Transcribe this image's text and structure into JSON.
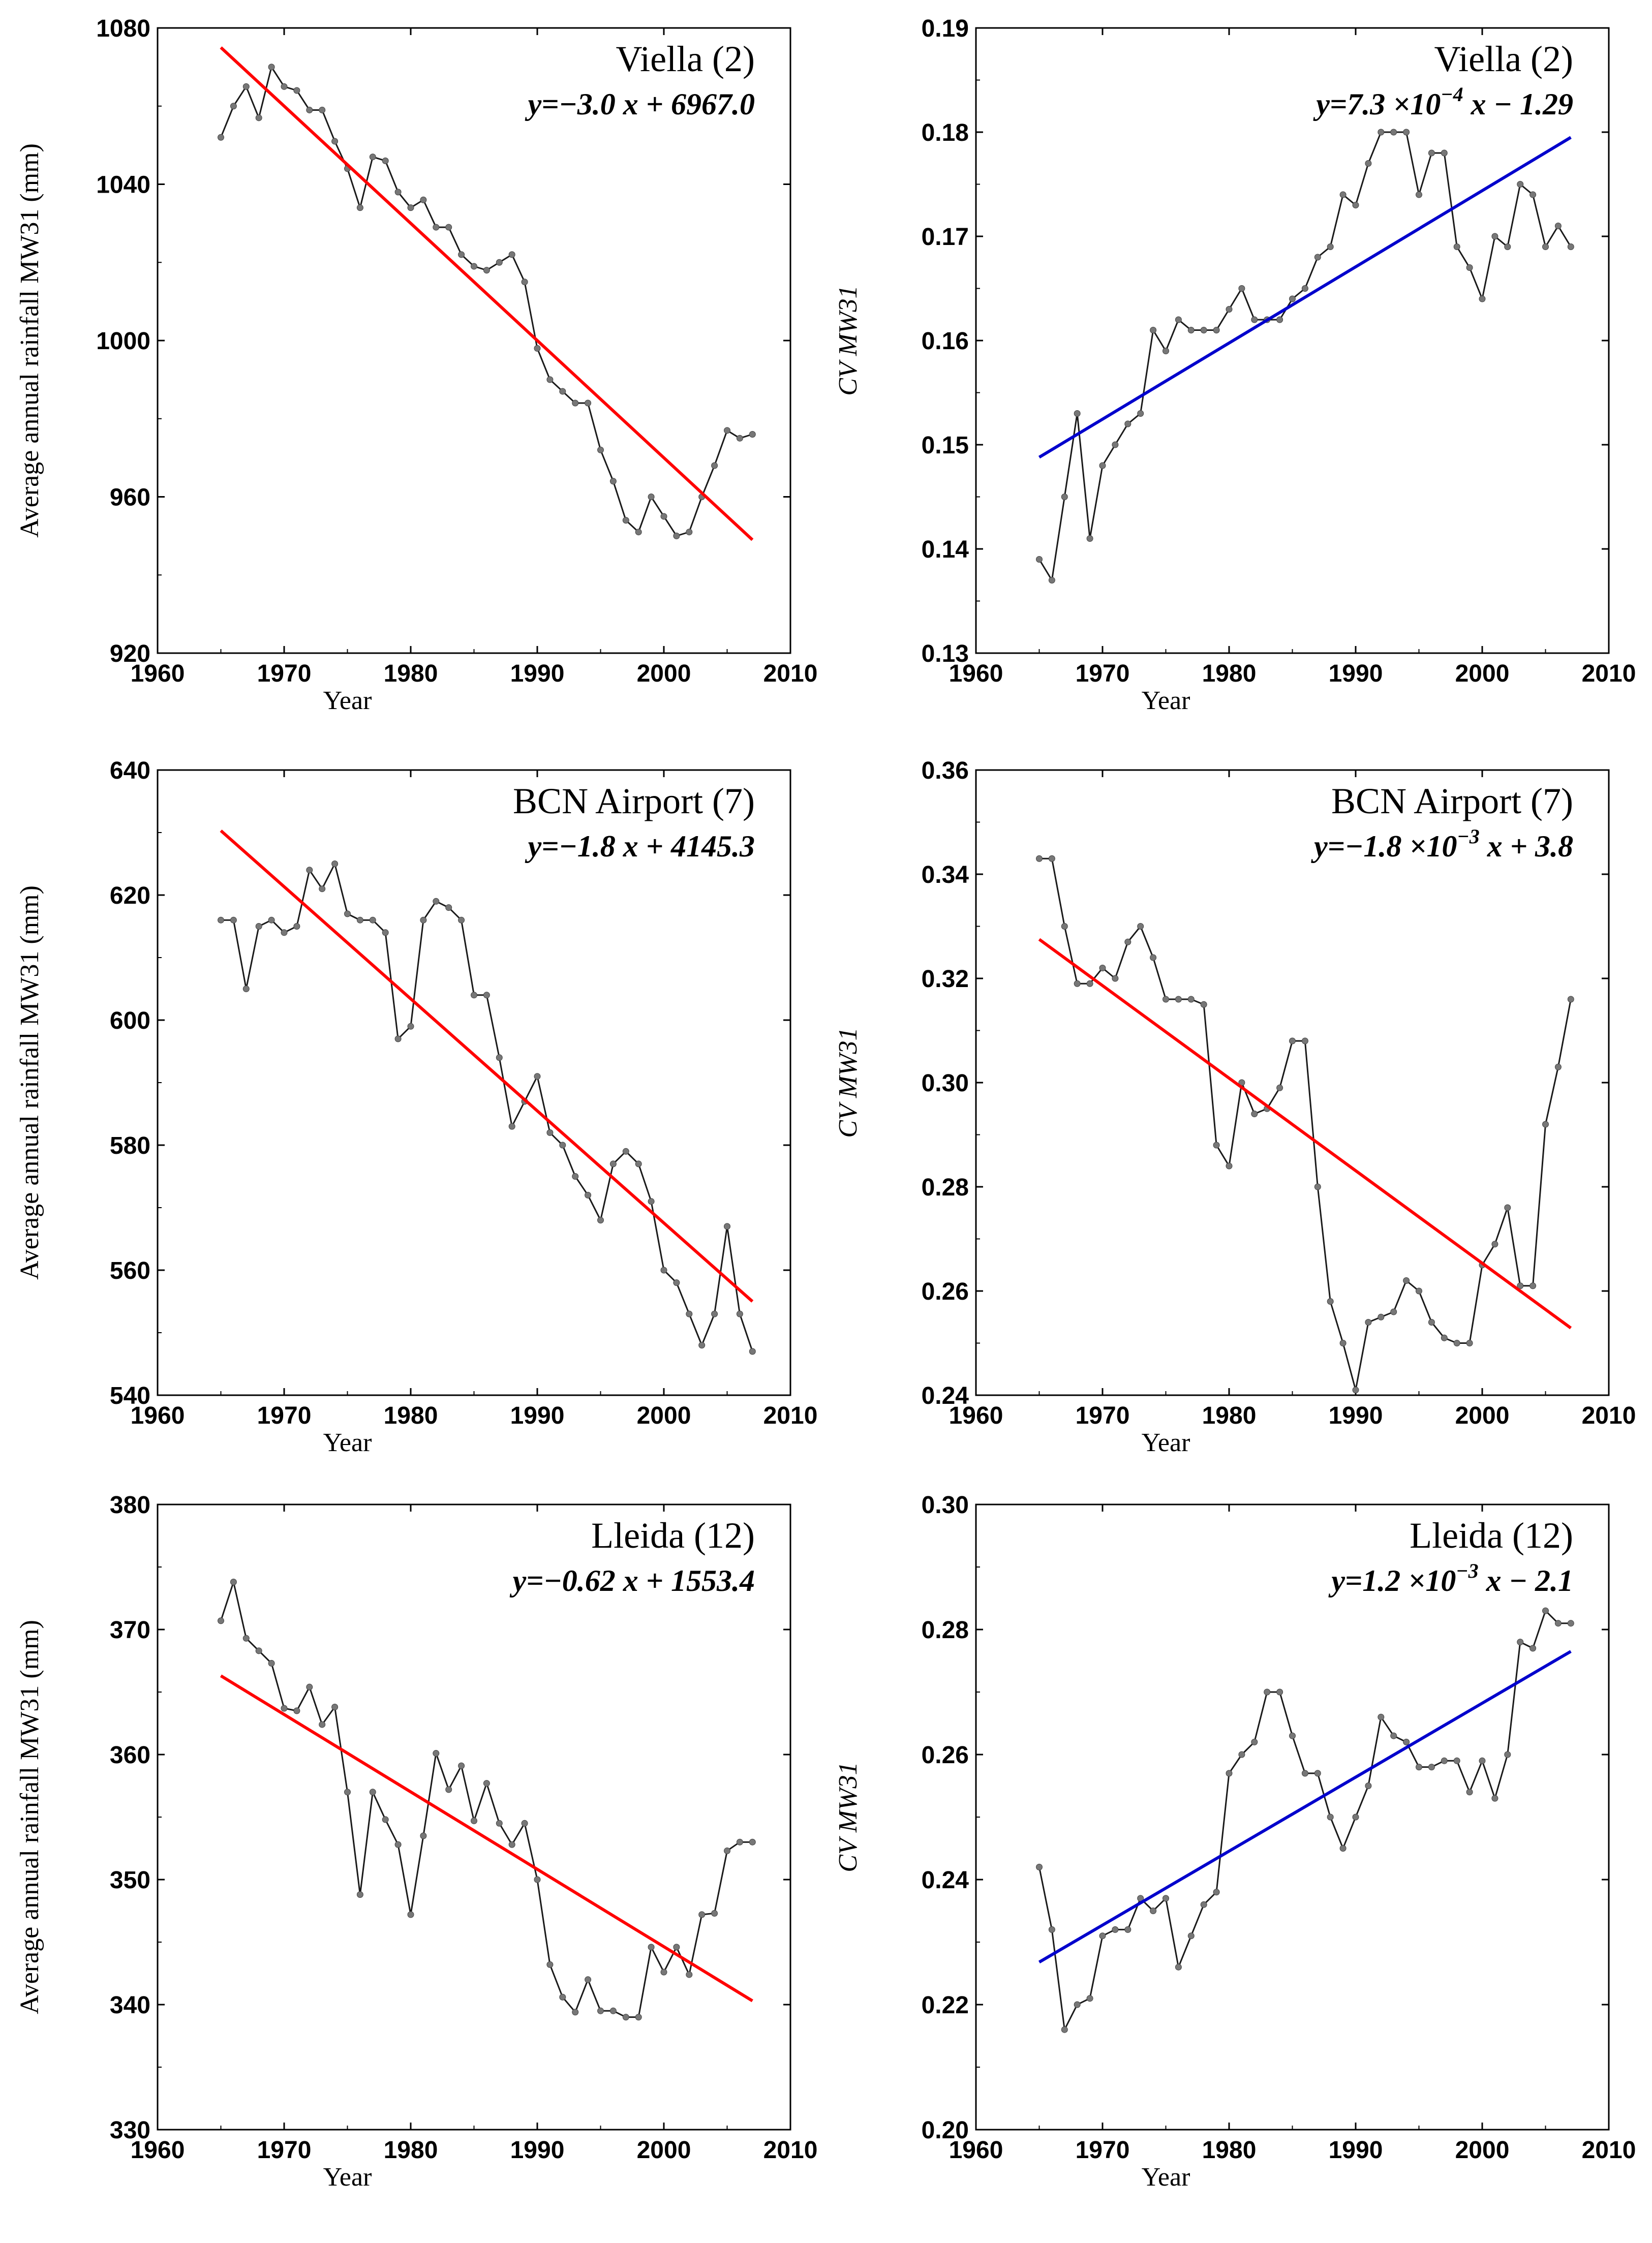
{
  "chart_data": [
    {
      "type": "line",
      "title": "Viella (2)",
      "equation": {
        "prefix": "y=−3.0 x + 6967.0",
        "exp": "",
        "suffix": ""
      },
      "xlabel": "Year",
      "ylabel": "Average annual rainfall MW31 (mm)",
      "xlim": [
        1960,
        2010
      ],
      "ylim": [
        920,
        1080
      ],
      "xticks": [
        1960,
        1970,
        1980,
        1990,
        2000,
        2010
      ],
      "yticks": [
        920,
        960,
        1000,
        1040,
        1080
      ],
      "tick_decimals": 0,
      "trend_color": "#ff0000",
      "trend": {
        "x": [
          1965,
          2007
        ],
        "y": [
          1075.0,
          949.0
        ]
      },
      "series": [
        {
          "name": "MW31",
          "x_start": 1965,
          "values": [
            1052,
            1060,
            1065,
            1057,
            1070,
            1065,
            1064,
            1059,
            1059,
            1051,
            1044,
            1034,
            1047,
            1046,
            1038,
            1034,
            1036,
            1029,
            1029,
            1022,
            1019,
            1018,
            1020,
            1022,
            1015,
            998,
            990,
            987,
            984,
            984,
            972,
            964,
            954,
            951,
            960,
            955,
            950,
            951,
            960,
            968,
            977,
            975,
            976
          ]
        }
      ]
    },
    {
      "type": "line",
      "title": "Viella (2)",
      "equation": {
        "prefix": "y=7.3 ×10",
        "exp": "−4",
        "suffix": "x − 1.29"
      },
      "xlabel": "Year",
      "ylabel": "CV MW31",
      "xlim": [
        1960,
        2010
      ],
      "ylim": [
        0.13,
        0.19
      ],
      "xticks": [
        1960,
        1970,
        1980,
        1990,
        2000,
        2010
      ],
      "yticks": [
        0.13,
        0.14,
        0.15,
        0.16,
        0.17,
        0.18,
        0.19
      ],
      "tick_decimals": 2,
      "trend_color": "#0000cc",
      "trend": {
        "x": [
          1965,
          2007
        ],
        "y": [
          0.1488,
          0.1795
        ]
      },
      "series": [
        {
          "name": "CV MW31",
          "x_start": 1965,
          "values": [
            0.139,
            0.137,
            0.145,
            0.153,
            0.141,
            0.148,
            0.15,
            0.152,
            0.153,
            0.161,
            0.159,
            0.162,
            0.161,
            0.161,
            0.161,
            0.163,
            0.165,
            0.162,
            0.162,
            0.162,
            0.164,
            0.165,
            0.168,
            0.169,
            0.174,
            0.173,
            0.177,
            0.18,
            0.18,
            0.18,
            0.174,
            0.178,
            0.178,
            0.169,
            0.167,
            0.164,
            0.17,
            0.169,
            0.175,
            0.174,
            0.169,
            0.171,
            0.169
          ]
        }
      ]
    },
    {
      "type": "line",
      "title": "BCN Airport (7)",
      "equation": {
        "prefix": "y=−1.8 x + 4145.3",
        "exp": "",
        "suffix": ""
      },
      "xlabel": "Year",
      "ylabel": "Average annual rainfall MW31 (mm)",
      "xlim": [
        1960,
        2010
      ],
      "ylim": [
        540,
        640
      ],
      "xticks": [
        1960,
        1970,
        1980,
        1990,
        2000,
        2010
      ],
      "yticks": [
        540,
        560,
        580,
        600,
        620,
        640
      ],
      "tick_decimals": 0,
      "trend_color": "#ff0000",
      "trend": {
        "x": [
          1965,
          2007
        ],
        "y": [
          630.3,
          555.0
        ]
      },
      "series": [
        {
          "name": "MW31",
          "x_start": 1965,
          "values": [
            616,
            616,
            605,
            615,
            616,
            614,
            615,
            624,
            621,
            625,
            617,
            616,
            616,
            614,
            597,
            599,
            616,
            619,
            618,
            616,
            604,
            604,
            594,
            583,
            587,
            591,
            582,
            580,
            575,
            572,
            568,
            577,
            579,
            577,
            571,
            560,
            558,
            553,
            548,
            553,
            567,
            553,
            547
          ]
        }
      ]
    },
    {
      "type": "line",
      "title": "BCN Airport (7)",
      "equation": {
        "prefix": "y=−1.8 ×10",
        "exp": "−3",
        "suffix": "x + 3.8"
      },
      "xlabel": "Year",
      "ylabel": "CV MW31",
      "xlim": [
        1960,
        2010
      ],
      "ylim": [
        0.24,
        0.36
      ],
      "xticks": [
        1960,
        1970,
        1980,
        1990,
        2000,
        2010
      ],
      "yticks": [
        0.24,
        0.26,
        0.28,
        0.3,
        0.32,
        0.34,
        0.36
      ],
      "tick_decimals": 2,
      "trend_color": "#ff0000",
      "trend": {
        "x": [
          1965,
          2007
        ],
        "y": [
          0.3275,
          0.2529
        ]
      },
      "series": [
        {
          "name": "CV MW31",
          "x_start": 1965,
          "values": [
            0.343,
            0.343,
            0.33,
            0.319,
            0.319,
            0.322,
            0.32,
            0.327,
            0.33,
            0.324,
            0.316,
            0.316,
            0.316,
            0.315,
            0.288,
            0.284,
            0.3,
            0.294,
            0.295,
            0.299,
            0.308,
            0.308,
            0.28,
            0.258,
            0.25,
            0.241,
            0.254,
            0.255,
            0.256,
            0.262,
            0.26,
            0.254,
            0.251,
            0.25,
            0.25,
            0.265,
            0.269,
            0.276,
            0.261,
            0.261,
            0.292,
            0.303,
            0.316
          ]
        }
      ]
    },
    {
      "type": "line",
      "title": "Lleida (12)",
      "equation": {
        "prefix": "y=−0.62 x + 1553.4",
        "exp": "",
        "suffix": ""
      },
      "xlabel": "Year",
      "ylabel": "Average annual rainfall MW31 (mm)",
      "xlim": [
        1960,
        2010
      ],
      "ylim": [
        330,
        380
      ],
      "xticks": [
        1960,
        1970,
        1980,
        1990,
        2000,
        2010
      ],
      "yticks": [
        330,
        340,
        350,
        360,
        370,
        380
      ],
      "tick_decimals": 0,
      "trend_color": "#ff0000",
      "trend": {
        "x": [
          1965,
          2007
        ],
        "y": [
          366.3,
          340.3
        ]
      },
      "series": [
        {
          "name": "MW31",
          "x_start": 1965,
          "values": [
            370.7,
            373.8,
            369.3,
            368.3,
            367.3,
            363.7,
            363.5,
            365.4,
            362.4,
            363.8,
            357.0,
            348.8,
            357.0,
            354.8,
            352.8,
            347.2,
            353.5,
            360.1,
            357.2,
            359.1,
            354.7,
            357.7,
            354.5,
            352.8,
            354.5,
            350.0,
            343.2,
            340.6,
            339.4,
            342.0,
            339.5,
            339.5,
            339.0,
            339.0,
            344.6,
            342.6,
            344.6,
            342.4,
            347.2,
            347.3,
            352.3,
            353.0,
            353.0
          ]
        }
      ]
    },
    {
      "type": "line",
      "title": "Lleida (12)",
      "equation": {
        "prefix": "y=1.2 ×10",
        "exp": "−3",
        "suffix": "x − 2.1"
      },
      "xlabel": "Year",
      "ylabel": "CV MW31",
      "xlim": [
        1960,
        2010
      ],
      "ylim": [
        0.2,
        0.3
      ],
      "xticks": [
        1960,
        1970,
        1980,
        1990,
        2000,
        2010
      ],
      "yticks": [
        0.2,
        0.22,
        0.24,
        0.26,
        0.28,
        0.3
      ],
      "tick_decimals": 2,
      "trend_color": "#0000cc",
      "trend": {
        "x": [
          1965,
          2007
        ],
        "y": [
          0.2268,
          0.2765
        ]
      },
      "series": [
        {
          "name": "CV MW31",
          "x_start": 1965,
          "values": [
            0.242,
            0.232,
            0.216,
            0.22,
            0.221,
            0.231,
            0.232,
            0.232,
            0.237,
            0.235,
            0.237,
            0.226,
            0.231,
            0.236,
            0.238,
            0.257,
            0.26,
            0.262,
            0.27,
            0.27,
            0.263,
            0.257,
            0.257,
            0.25,
            0.245,
            0.25,
            0.255,
            0.266,
            0.263,
            0.262,
            0.258,
            0.258,
            0.259,
            0.259,
            0.254,
            0.259,
            0.253,
            0.26,
            0.278,
            0.277,
            0.283,
            0.281,
            0.281
          ]
        }
      ]
    }
  ]
}
